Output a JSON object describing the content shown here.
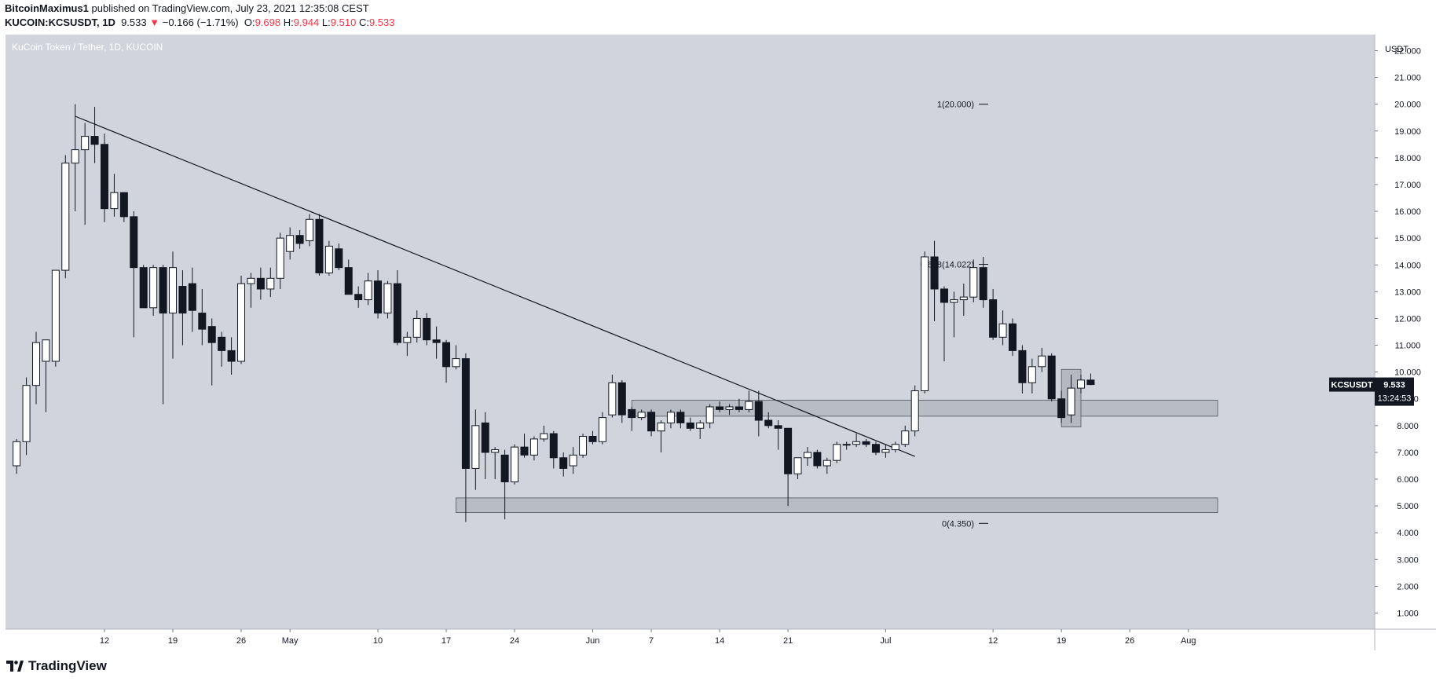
{
  "header": {
    "author": "BitcoinMaximus1",
    "published_text": "published on TradingView.com, July 23, 2021 12:35:08 CEST"
  },
  "ohlc": {
    "symbol": "KUCOIN:KCSUSDT, 1D",
    "last": "9.533",
    "arrow": "▼",
    "change": "−0.166 (−1.71%)",
    "o_label": "O:",
    "o": "9.698",
    "h_label": "H:",
    "h": "9.944",
    "l_label": "L:",
    "l": "9.510",
    "c_label": "C:",
    "c": "9.533"
  },
  "footer": {
    "brand": "TradingView"
  },
  "colors": {
    "plot_bg": "#d1d4dc",
    "axis_bg": "#ffffff",
    "candle_up": "#ffffff",
    "candle_down": "#131722",
    "accent_down": "#f23645",
    "zone_fill": "#b2b5be"
  },
  "chart_data": {
    "type": "candlestick",
    "title": "KuCoin Token / Tether, 1D, KUCOIN",
    "y_unit": "USDT",
    "ylim": [
      0.4,
      22.6
    ],
    "x_tick_labels": [
      "12",
      "19",
      "26",
      "May",
      "10",
      "17",
      "24",
      "Jun",
      "7",
      "14",
      "21",
      "Jul",
      "12",
      "19",
      "26",
      "Aug"
    ],
    "y_tick_labels": [
      "1.000",
      "2.000",
      "3.000",
      "4.000",
      "5.000",
      "6.000",
      "7.000",
      "8.000",
      "9.000",
      "10.000",
      "11.000",
      "12.000",
      "13.000",
      "14.000",
      "15.000",
      "16.000",
      "17.000",
      "18.000",
      "19.000",
      "20.000",
      "21.000",
      "22.000"
    ],
    "fib_levels": [
      {
        "label": "1(20.000)",
        "value": 20.0
      },
      {
        "label": "0.618(14.022)",
        "value": 14.022
      },
      {
        "label": "0(4.350)",
        "value": 4.35
      }
    ],
    "price_label": {
      "symbol": "KCSUSDT",
      "value": "9.533",
      "countdown": "13:24:53"
    },
    "trendline": {
      "start": {
        "date": "2021-04-09",
        "value": 19.55
      },
      "end": {
        "date": "2021-07-04",
        "value": 6.85
      }
    },
    "zones": [
      {
        "start": "2021-06-05",
        "end": "2021-08-04",
        "low": 8.35,
        "high": 8.95
      },
      {
        "start": "2021-05-18",
        "end": "2021-08-04",
        "low": 4.75,
        "high": 5.3
      },
      {
        "start": "2021-07-19",
        "end": "2021-07-21",
        "low": 7.95,
        "high": 10.1
      }
    ],
    "candles": [
      {
        "date": "2021-04-03",
        "o": 6.5,
        "h": 7.5,
        "l": 6.2,
        "c": 7.4
      },
      {
        "date": "2021-04-04",
        "o": 7.4,
        "h": 9.8,
        "l": 6.9,
        "c": 9.5
      },
      {
        "date": "2021-04-05",
        "o": 9.5,
        "h": 11.5,
        "l": 8.8,
        "c": 11.1
      },
      {
        "date": "2021-04-06",
        "o": 10.4,
        "h": 11.2,
        "l": 8.5,
        "c": 11.2
      },
      {
        "date": "2021-04-07",
        "o": 10.4,
        "h": 13.8,
        "l": 10.2,
        "c": 13.8
      },
      {
        "date": "2021-04-08",
        "o": 13.8,
        "h": 18.1,
        "l": 13.5,
        "c": 17.8
      },
      {
        "date": "2021-04-09",
        "o": 17.8,
        "h": 20.0,
        "l": 16.0,
        "c": 18.3
      },
      {
        "date": "2021-04-10",
        "o": 18.3,
        "h": 19.3,
        "l": 15.5,
        "c": 18.8
      },
      {
        "date": "2021-04-11",
        "o": 18.8,
        "h": 19.9,
        "l": 17.8,
        "c": 18.5
      },
      {
        "date": "2021-04-12",
        "o": 18.5,
        "h": 18.9,
        "l": 15.6,
        "c": 16.1
      },
      {
        "date": "2021-04-13",
        "o": 16.1,
        "h": 17.4,
        "l": 15.8,
        "c": 16.7
      },
      {
        "date": "2021-04-14",
        "o": 16.7,
        "h": 16.7,
        "l": 15.6,
        "c": 15.8
      },
      {
        "date": "2021-04-15",
        "o": 15.8,
        "h": 16.0,
        "l": 11.3,
        "c": 13.9
      },
      {
        "date": "2021-04-16",
        "o": 13.9,
        "h": 14.0,
        "l": 12.5,
        "c": 12.4
      },
      {
        "date": "2021-04-17",
        "o": 12.4,
        "h": 14.0,
        "l": 12.1,
        "c": 13.9
      },
      {
        "date": "2021-04-18",
        "o": 13.9,
        "h": 14.0,
        "l": 8.8,
        "c": 12.2
      },
      {
        "date": "2021-04-19",
        "o": 12.2,
        "h": 14.5,
        "l": 10.5,
        "c": 13.9
      },
      {
        "date": "2021-04-20",
        "o": 13.2,
        "h": 13.8,
        "l": 11.0,
        "c": 12.2
      },
      {
        "date": "2021-04-21",
        "o": 13.3,
        "h": 13.9,
        "l": 11.5,
        "c": 12.3
      },
      {
        "date": "2021-04-22",
        "o": 12.2,
        "h": 13.1,
        "l": 11.0,
        "c": 11.6
      },
      {
        "date": "2021-04-23",
        "o": 11.7,
        "h": 12.0,
        "l": 9.5,
        "c": 11.1
      },
      {
        "date": "2021-04-24",
        "o": 11.3,
        "h": 11.5,
        "l": 10.2,
        "c": 10.8
      },
      {
        "date": "2021-04-25",
        "o": 10.8,
        "h": 11.3,
        "l": 9.9,
        "c": 10.4
      },
      {
        "date": "2021-04-26",
        "o": 10.4,
        "h": 13.6,
        "l": 10.3,
        "c": 13.3
      },
      {
        "date": "2021-04-27",
        "o": 13.3,
        "h": 13.7,
        "l": 12.4,
        "c": 13.5
      },
      {
        "date": "2021-04-28",
        "o": 13.5,
        "h": 13.9,
        "l": 12.7,
        "c": 13.1
      },
      {
        "date": "2021-04-29",
        "o": 13.1,
        "h": 13.9,
        "l": 12.8,
        "c": 13.5
      },
      {
        "date": "2021-04-30",
        "o": 13.5,
        "h": 15.2,
        "l": 13.1,
        "c": 15.0
      },
      {
        "date": "2021-05-01",
        "o": 14.5,
        "h": 15.4,
        "l": 14.2,
        "c": 15.1
      },
      {
        "date": "2021-05-02",
        "o": 15.1,
        "h": 15.3,
        "l": 14.6,
        "c": 14.8
      },
      {
        "date": "2021-05-03",
        "o": 14.9,
        "h": 15.9,
        "l": 14.7,
        "c": 15.7
      },
      {
        "date": "2021-05-04",
        "o": 15.7,
        "h": 15.9,
        "l": 13.6,
        "c": 13.7
      },
      {
        "date": "2021-05-05",
        "o": 13.7,
        "h": 14.9,
        "l": 13.6,
        "c": 14.7
      },
      {
        "date": "2021-05-06",
        "o": 14.6,
        "h": 14.8,
        "l": 13.8,
        "c": 13.9
      },
      {
        "date": "2021-05-07",
        "o": 13.9,
        "h": 14.2,
        "l": 12.9,
        "c": 12.9
      },
      {
        "date": "2021-05-08",
        "o": 12.9,
        "h": 13.2,
        "l": 12.4,
        "c": 12.7
      },
      {
        "date": "2021-05-09",
        "o": 12.7,
        "h": 13.7,
        "l": 12.5,
        "c": 13.4
      },
      {
        "date": "2021-05-10",
        "o": 13.4,
        "h": 13.8,
        "l": 12.0,
        "c": 12.2
      },
      {
        "date": "2021-05-11",
        "o": 12.2,
        "h": 13.4,
        "l": 12.0,
        "c": 13.3
      },
      {
        "date": "2021-05-12",
        "o": 13.3,
        "h": 13.8,
        "l": 11.0,
        "c": 11.1
      },
      {
        "date": "2021-05-13",
        "o": 11.1,
        "h": 11.5,
        "l": 10.6,
        "c": 11.3
      },
      {
        "date": "2021-05-14",
        "o": 11.3,
        "h": 12.3,
        "l": 11.1,
        "c": 12.0
      },
      {
        "date": "2021-05-15",
        "o": 12.0,
        "h": 12.2,
        "l": 11.0,
        "c": 11.2
      },
      {
        "date": "2021-05-16",
        "o": 11.2,
        "h": 11.7,
        "l": 10.5,
        "c": 11.1
      },
      {
        "date": "2021-05-17",
        "o": 11.1,
        "h": 11.2,
        "l": 9.6,
        "c": 10.2
      },
      {
        "date": "2021-05-18",
        "o": 10.2,
        "h": 11.0,
        "l": 10.1,
        "c": 10.5
      },
      {
        "date": "2021-05-19",
        "o": 10.5,
        "h": 10.7,
        "l": 4.4,
        "c": 6.4
      },
      {
        "date": "2021-05-20",
        "o": 6.4,
        "h": 8.6,
        "l": 5.6,
        "c": 8.0
      },
      {
        "date": "2021-05-21",
        "o": 8.1,
        "h": 8.5,
        "l": 6.0,
        "c": 7.0
      },
      {
        "date": "2021-05-22",
        "o": 7.0,
        "h": 7.2,
        "l": 6.0,
        "c": 7.1
      },
      {
        "date": "2021-05-23",
        "o": 6.9,
        "h": 7.1,
        "l": 4.5,
        "c": 5.9
      },
      {
        "date": "2021-05-24",
        "o": 5.9,
        "h": 7.3,
        "l": 5.8,
        "c": 7.2
      },
      {
        "date": "2021-05-25",
        "o": 7.2,
        "h": 7.7,
        "l": 6.8,
        "c": 6.9
      },
      {
        "date": "2021-05-26",
        "o": 6.9,
        "h": 7.6,
        "l": 6.7,
        "c": 7.5
      },
      {
        "date": "2021-05-27",
        "o": 7.5,
        "h": 8.0,
        "l": 7.4,
        "c": 7.7
      },
      {
        "date": "2021-05-28",
        "o": 7.7,
        "h": 7.8,
        "l": 6.4,
        "c": 6.8
      },
      {
        "date": "2021-05-29",
        "o": 6.8,
        "h": 7.0,
        "l": 6.1,
        "c": 6.4
      },
      {
        "date": "2021-05-30",
        "o": 6.5,
        "h": 7.2,
        "l": 6.2,
        "c": 6.9
      },
      {
        "date": "2021-05-31",
        "o": 6.9,
        "h": 7.7,
        "l": 6.8,
        "c": 7.6
      },
      {
        "date": "2021-06-01",
        "o": 7.6,
        "h": 7.8,
        "l": 7.3,
        "c": 7.4
      },
      {
        "date": "2021-06-02",
        "o": 7.4,
        "h": 8.5,
        "l": 7.3,
        "c": 8.3
      },
      {
        "date": "2021-06-03",
        "o": 8.4,
        "h": 9.9,
        "l": 8.3,
        "c": 9.6
      },
      {
        "date": "2021-06-04",
        "o": 9.6,
        "h": 9.7,
        "l": 8.1,
        "c": 8.4
      },
      {
        "date": "2021-06-05",
        "o": 8.6,
        "h": 8.7,
        "l": 7.8,
        "c": 8.3
      },
      {
        "date": "2021-06-06",
        "o": 8.3,
        "h": 8.6,
        "l": 8.2,
        "c": 8.5
      },
      {
        "date": "2021-06-07",
        "o": 8.5,
        "h": 8.6,
        "l": 7.6,
        "c": 7.8
      },
      {
        "date": "2021-06-08",
        "o": 7.8,
        "h": 8.2,
        "l": 7.0,
        "c": 8.1
      },
      {
        "date": "2021-06-09",
        "o": 8.1,
        "h": 8.6,
        "l": 7.9,
        "c": 8.5
      },
      {
        "date": "2021-06-10",
        "o": 8.5,
        "h": 8.6,
        "l": 7.9,
        "c": 8.1
      },
      {
        "date": "2021-06-11",
        "o": 8.1,
        "h": 8.3,
        "l": 7.8,
        "c": 7.9
      },
      {
        "date": "2021-06-12",
        "o": 7.9,
        "h": 8.2,
        "l": 7.5,
        "c": 8.1
      },
      {
        "date": "2021-06-13",
        "o": 8.1,
        "h": 8.8,
        "l": 7.9,
        "c": 8.7
      },
      {
        "date": "2021-06-14",
        "o": 8.7,
        "h": 8.9,
        "l": 8.5,
        "c": 8.6
      },
      {
        "date": "2021-06-15",
        "o": 8.6,
        "h": 8.8,
        "l": 8.4,
        "c": 8.7
      },
      {
        "date": "2021-06-16",
        "o": 8.7,
        "h": 9.0,
        "l": 8.5,
        "c": 8.6
      },
      {
        "date": "2021-06-17",
        "o": 8.6,
        "h": 9.3,
        "l": 8.5,
        "c": 8.9
      },
      {
        "date": "2021-06-18",
        "o": 8.9,
        "h": 9.3,
        "l": 7.6,
        "c": 8.2
      },
      {
        "date": "2021-06-19",
        "o": 8.2,
        "h": 8.5,
        "l": 7.9,
        "c": 8.0
      },
      {
        "date": "2021-06-20",
        "o": 8.0,
        "h": 8.2,
        "l": 7.1,
        "c": 7.9
      },
      {
        "date": "2021-06-21",
        "o": 7.9,
        "h": 7.9,
        "l": 5.0,
        "c": 6.2
      },
      {
        "date": "2021-06-22",
        "o": 6.2,
        "h": 6.8,
        "l": 6.0,
        "c": 6.8
      },
      {
        "date": "2021-06-23",
        "o": 6.8,
        "h": 7.2,
        "l": 6.5,
        "c": 7.0
      },
      {
        "date": "2021-06-24",
        "o": 7.0,
        "h": 7.1,
        "l": 6.4,
        "c": 6.5
      },
      {
        "date": "2021-06-25",
        "o": 6.5,
        "h": 6.8,
        "l": 6.2,
        "c": 6.7
      },
      {
        "date": "2021-06-26",
        "o": 6.7,
        "h": 7.4,
        "l": 6.6,
        "c": 7.3
      },
      {
        "date": "2021-06-27",
        "o": 7.3,
        "h": 7.4,
        "l": 7.1,
        "c": 7.3
      },
      {
        "date": "2021-06-28",
        "o": 7.3,
        "h": 7.7,
        "l": 7.2,
        "c": 7.4
      },
      {
        "date": "2021-06-29",
        "o": 7.4,
        "h": 7.5,
        "l": 7.2,
        "c": 7.3
      },
      {
        "date": "2021-06-30",
        "o": 7.3,
        "h": 7.4,
        "l": 6.9,
        "c": 7.0
      },
      {
        "date": "2021-07-01",
        "o": 7.0,
        "h": 7.3,
        "l": 6.8,
        "c": 7.1
      },
      {
        "date": "2021-07-02",
        "o": 7.1,
        "h": 7.4,
        "l": 7.0,
        "c": 7.3
      },
      {
        "date": "2021-07-03",
        "o": 7.3,
        "h": 8.0,
        "l": 7.2,
        "c": 7.8
      },
      {
        "date": "2021-07-04",
        "o": 7.8,
        "h": 9.5,
        "l": 7.6,
        "c": 9.3
      },
      {
        "date": "2021-07-05",
        "o": 9.3,
        "h": 14.5,
        "l": 9.2,
        "c": 14.3
      },
      {
        "date": "2021-07-06",
        "o": 14.3,
        "h": 14.9,
        "l": 11.9,
        "c": 13.1
      },
      {
        "date": "2021-07-07",
        "o": 13.1,
        "h": 13.2,
        "l": 10.4,
        "c": 12.6
      },
      {
        "date": "2021-07-08",
        "o": 12.6,
        "h": 13.0,
        "l": 11.3,
        "c": 12.7
      },
      {
        "date": "2021-07-09",
        "o": 12.7,
        "h": 13.3,
        "l": 12.1,
        "c": 12.8
      },
      {
        "date": "2021-07-10",
        "o": 12.8,
        "h": 14.2,
        "l": 12.6,
        "c": 13.9
      },
      {
        "date": "2021-07-11",
        "o": 13.9,
        "h": 14.3,
        "l": 12.4,
        "c": 12.7
      },
      {
        "date": "2021-07-12",
        "o": 12.7,
        "h": 13.1,
        "l": 11.2,
        "c": 11.3
      },
      {
        "date": "2021-07-13",
        "o": 11.3,
        "h": 12.3,
        "l": 11.0,
        "c": 11.8
      },
      {
        "date": "2021-07-14",
        "o": 11.8,
        "h": 12.0,
        "l": 10.6,
        "c": 10.8
      },
      {
        "date": "2021-07-15",
        "o": 10.8,
        "h": 11.0,
        "l": 9.2,
        "c": 9.6
      },
      {
        "date": "2021-07-16",
        "o": 9.6,
        "h": 10.5,
        "l": 9.2,
        "c": 10.2
      },
      {
        "date": "2021-07-17",
        "o": 10.2,
        "h": 10.9,
        "l": 10.0,
        "c": 10.6
      },
      {
        "date": "2021-07-18",
        "o": 10.6,
        "h": 10.7,
        "l": 8.9,
        "c": 9.0
      },
      {
        "date": "2021-07-19",
        "o": 9.0,
        "h": 9.3,
        "l": 8.1,
        "c": 8.3
      },
      {
        "date": "2021-07-20",
        "o": 8.4,
        "h": 9.9,
        "l": 8.1,
        "c": 9.4
      },
      {
        "date": "2021-07-21",
        "o": 9.4,
        "h": 9.9,
        "l": 9.2,
        "c": 9.7
      },
      {
        "date": "2021-07-22",
        "o": 9.7,
        "h": 9.944,
        "l": 9.51,
        "c": 9.533
      }
    ]
  }
}
